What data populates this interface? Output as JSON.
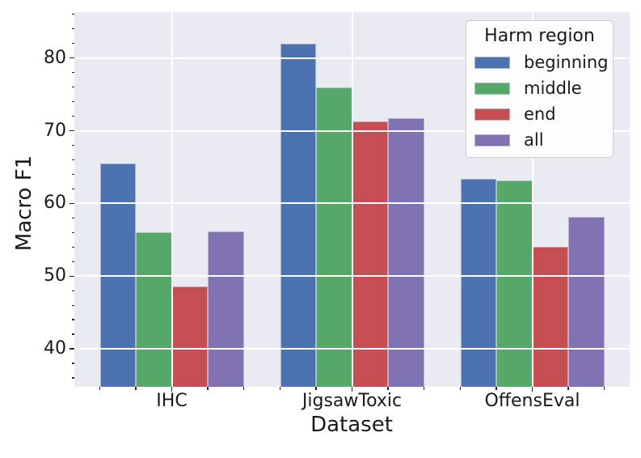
{
  "chart_data": {
    "type": "bar",
    "title": "",
    "xlabel": "Dataset",
    "ylabel": "Macro F1",
    "categories": [
      "IHC",
      "JigsawToxic",
      "OffensEval"
    ],
    "series": [
      {
        "name": "beginning",
        "color": "#4c72b0",
        "values": [
          65.5,
          82.0,
          63.4
        ]
      },
      {
        "name": "middle",
        "color": "#55a868",
        "values": [
          56.1,
          76.0,
          63.2
        ]
      },
      {
        "name": "end",
        "color": "#c44e52",
        "values": [
          48.6,
          71.3,
          54.1
        ]
      },
      {
        "name": "all",
        "color": "#8172b3",
        "values": [
          56.2,
          71.7,
          58.2
        ]
      }
    ],
    "ylim": [
      34.8,
      86.3
    ],
    "yticks": [
      40,
      50,
      60,
      70,
      80
    ],
    "y_minor_step": 2,
    "x_minor_divisions": 5,
    "grid": true,
    "grid_on_top": true,
    "legend": {
      "title": "Harm region",
      "position": "upper right"
    },
    "colors": {
      "plot_background": "#eaeaf2",
      "figure_background": "#ffffff",
      "gridline": "#ffffff",
      "tick": "#262626",
      "text": "#1a1a1a"
    }
  }
}
